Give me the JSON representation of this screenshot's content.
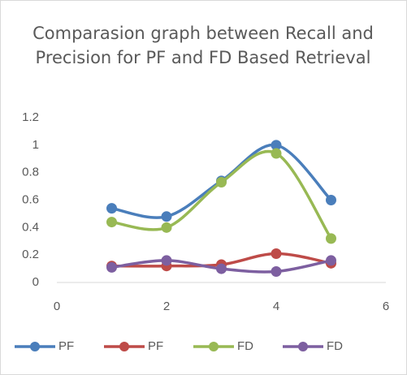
{
  "chart_data": {
    "type": "line",
    "title": "Comparasion graph between Recall and Precision for PF and FD Based Retrieval",
    "x": [
      1,
      2,
      3,
      4,
      5
    ],
    "series": [
      {
        "name": "PF",
        "color": "#4a7ebb",
        "values": [
          0.54,
          0.48,
          0.74,
          1.0,
          0.6
        ]
      },
      {
        "name": "PF",
        "color": "#be4b48",
        "values": [
          0.12,
          0.12,
          0.13,
          0.21,
          0.14
        ]
      },
      {
        "name": "FD",
        "color": "#98b954",
        "values": [
          0.44,
          0.4,
          0.73,
          0.94,
          0.32
        ]
      },
      {
        "name": "FD",
        "color": "#7d5fa0",
        "values": [
          0.11,
          0.16,
          0.1,
          0.08,
          0.16
        ]
      }
    ],
    "xlim": [
      0,
      6
    ],
    "xticks": [
      0,
      2,
      4,
      6
    ],
    "ylim": [
      0,
      1.2
    ],
    "yticks": [
      0,
      0.2,
      0.4,
      0.6,
      0.8,
      1,
      1.2
    ],
    "smooth": true,
    "grid": false,
    "legend": "bottom"
  }
}
